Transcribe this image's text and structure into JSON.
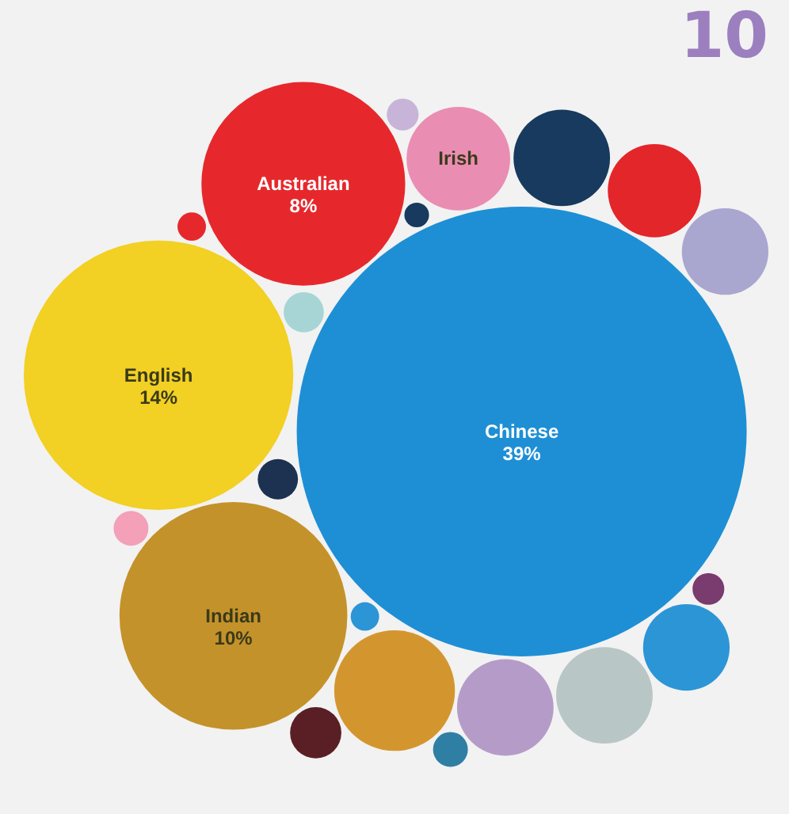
{
  "chart_data": {
    "type": "other",
    "title": "10",
    "categories": [
      "Chinese",
      "English",
      "Indian",
      "Australian",
      "Irish"
    ],
    "values": [
      39,
      14,
      10,
      8,
      null
    ],
    "value_labels": [
      "39%",
      "14%",
      "10%",
      "8%",
      null
    ],
    "colors": [
      "#1e8fd5",
      "#f2d024",
      "#c4922a",
      "#e6282c",
      "#ea8db2"
    ]
  }
}
